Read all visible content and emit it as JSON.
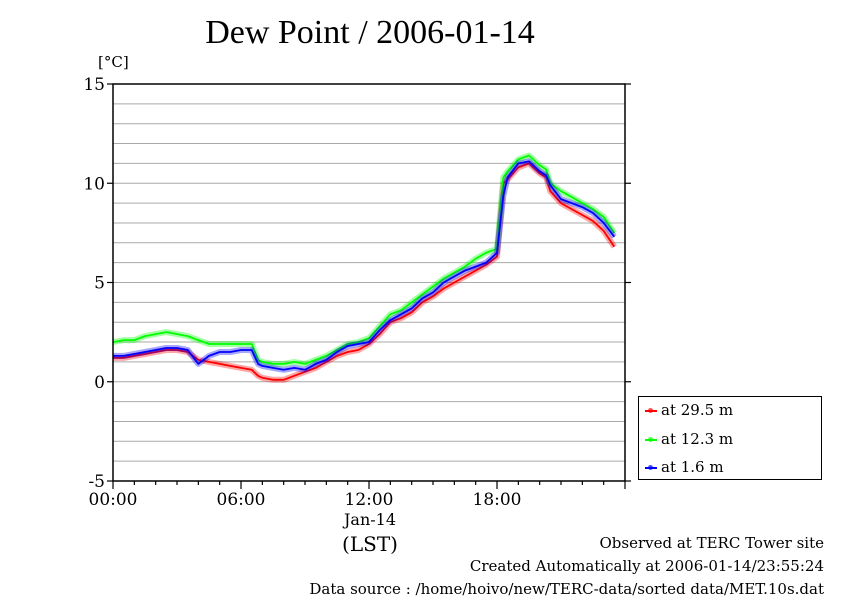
{
  "chart_data": {
    "type": "line",
    "title": "Dew Point / 2006-01-14",
    "ylabel": "[°C]",
    "xlabel": "(LST)",
    "date_label": "Jan-14",
    "ylim": [
      -5,
      15
    ],
    "xlim": [
      0,
      24
    ],
    "yticks": [
      "15",
      "10",
      "5",
      "0",
      "-5"
    ],
    "xticks": [
      "00:00",
      "06:00",
      "12:00",
      "18:00"
    ],
    "grid": true,
    "legend_position": "bottom-right outside",
    "series": [
      {
        "name": "at 29.5 m",
        "color": "#ff0000",
        "x": [
          0,
          0.5,
          1,
          1.5,
          2,
          2.5,
          3,
          3.5,
          4,
          4.5,
          5,
          5.5,
          6,
          6.5,
          6.8,
          7,
          7.5,
          8,
          8.5,
          9,
          9.5,
          10,
          10.5,
          11,
          11.5,
          12,
          12.5,
          13,
          13.5,
          14,
          14.5,
          15,
          15.5,
          16,
          16.5,
          17,
          17.5,
          18,
          18.3,
          18.5,
          19,
          19.5,
          20,
          20.3,
          20.5,
          21,
          21.5,
          22,
          22.5,
          23,
          23.5
        ],
        "y": [
          1.2,
          1.2,
          1.3,
          1.4,
          1.5,
          1.6,
          1.6,
          1.5,
          1.1,
          1.0,
          0.9,
          0.8,
          0.7,
          0.6,
          0.3,
          0.2,
          0.1,
          0.1,
          0.3,
          0.5,
          0.7,
          1.0,
          1.3,
          1.5,
          1.6,
          1.9,
          2.4,
          3.0,
          3.2,
          3.5,
          4.0,
          4.3,
          4.7,
          5.0,
          5.3,
          5.6,
          5.9,
          6.3,
          10.0,
          10.2,
          10.8,
          11.0,
          10.5,
          10.3,
          9.6,
          9.0,
          8.7,
          8.4,
          8.1,
          7.6,
          6.8
        ]
      },
      {
        "name": "at 12.3 m",
        "color": "#00ff00",
        "x": [
          0,
          0.5,
          1,
          1.5,
          2,
          2.5,
          3,
          3.5,
          4,
          4.5,
          5,
          5.5,
          6,
          6.5,
          6.8,
          7,
          7.5,
          8,
          8.5,
          9,
          9.5,
          10,
          10.5,
          11,
          11.5,
          12,
          12.5,
          13,
          13.5,
          14,
          14.5,
          15,
          15.5,
          16,
          16.5,
          17,
          17.5,
          18,
          18.3,
          18.5,
          19,
          19.5,
          20,
          20.3,
          20.5,
          21,
          21.5,
          22,
          22.5,
          23,
          23.5
        ],
        "y": [
          2.0,
          2.1,
          2.1,
          2.3,
          2.4,
          2.5,
          2.4,
          2.3,
          2.1,
          1.9,
          1.9,
          1.9,
          1.9,
          1.9,
          1.1,
          1.0,
          0.9,
          0.9,
          1.0,
          0.9,
          1.1,
          1.3,
          1.6,
          1.9,
          2.0,
          2.2,
          2.8,
          3.4,
          3.6,
          4.0,
          4.4,
          4.8,
          5.2,
          5.5,
          5.8,
          6.2,
          6.5,
          6.7,
          10.3,
          10.6,
          11.2,
          11.4,
          10.9,
          10.7,
          10.0,
          9.6,
          9.3,
          9.0,
          8.7,
          8.3,
          7.5
        ]
      },
      {
        "name": "at 1.6 m",
        "color": "#0000ff",
        "x": [
          0,
          0.5,
          1,
          1.5,
          2,
          2.5,
          3,
          3.5,
          4,
          4.5,
          5,
          5.5,
          6,
          6.5,
          6.8,
          7,
          7.5,
          8,
          8.5,
          9,
          9.5,
          10,
          10.5,
          11,
          11.5,
          12,
          12.5,
          13,
          13.5,
          14,
          14.5,
          15,
          15.5,
          16,
          16.5,
          17,
          17.5,
          18,
          18.3,
          18.5,
          19,
          19.5,
          20,
          20.3,
          20.5,
          21,
          21.5,
          22,
          22.5,
          23,
          23.5
        ],
        "y": [
          1.3,
          1.3,
          1.4,
          1.5,
          1.6,
          1.7,
          1.7,
          1.6,
          0.9,
          1.3,
          1.5,
          1.5,
          1.6,
          1.6,
          0.9,
          0.8,
          0.7,
          0.6,
          0.7,
          0.6,
          0.9,
          1.1,
          1.5,
          1.8,
          1.9,
          2.0,
          2.6,
          3.1,
          3.4,
          3.7,
          4.2,
          4.5,
          5.0,
          5.3,
          5.6,
          5.8,
          6.0,
          6.5,
          9.4,
          10.3,
          11.0,
          11.1,
          10.6,
          10.4,
          9.9,
          9.2,
          9.0,
          8.8,
          8.5,
          8.0,
          7.3
        ]
      }
    ]
  },
  "footer": {
    "line1": "Observed at TERC Tower site",
    "line2": "Created Automatically at 2006-01-14/23:55:24",
    "line3": "Data source : /home/hoivo/new/TERC-data/sorted  data/MET.10s.dat"
  }
}
